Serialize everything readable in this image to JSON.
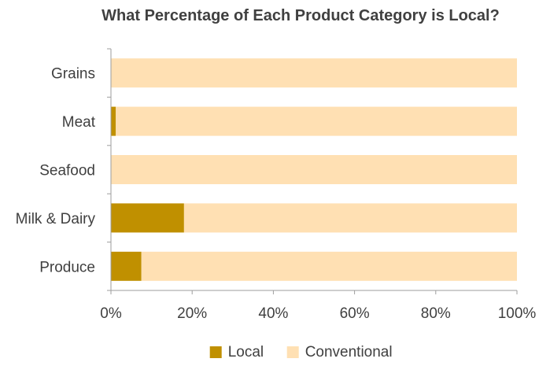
{
  "chart_data": {
    "type": "bar",
    "orientation": "horizontal",
    "stacked": "100%",
    "title": "What Percentage of Each Product Category is Local?",
    "categories": [
      "Grains",
      "Meat",
      "Seafood",
      "Milk & Dairy",
      "Produce"
    ],
    "series": [
      {
        "name": "Local",
        "color": "#c09000",
        "values": [
          0,
          1.2,
          0,
          18,
          7.5
        ]
      },
      {
        "name": "Conventional",
        "color": "#ffe0b3",
        "values": [
          100,
          98.8,
          100,
          82,
          92.5
        ]
      }
    ],
    "xlim": [
      0,
      100
    ],
    "xticks": [
      0,
      20,
      40,
      60,
      80,
      100
    ],
    "xtick_labels": [
      "0%",
      "20%",
      "40%",
      "60%",
      "80%",
      "100%"
    ],
    "xlabel": "",
    "ylabel": "",
    "grid": false,
    "legend_position": "bottom-center"
  }
}
